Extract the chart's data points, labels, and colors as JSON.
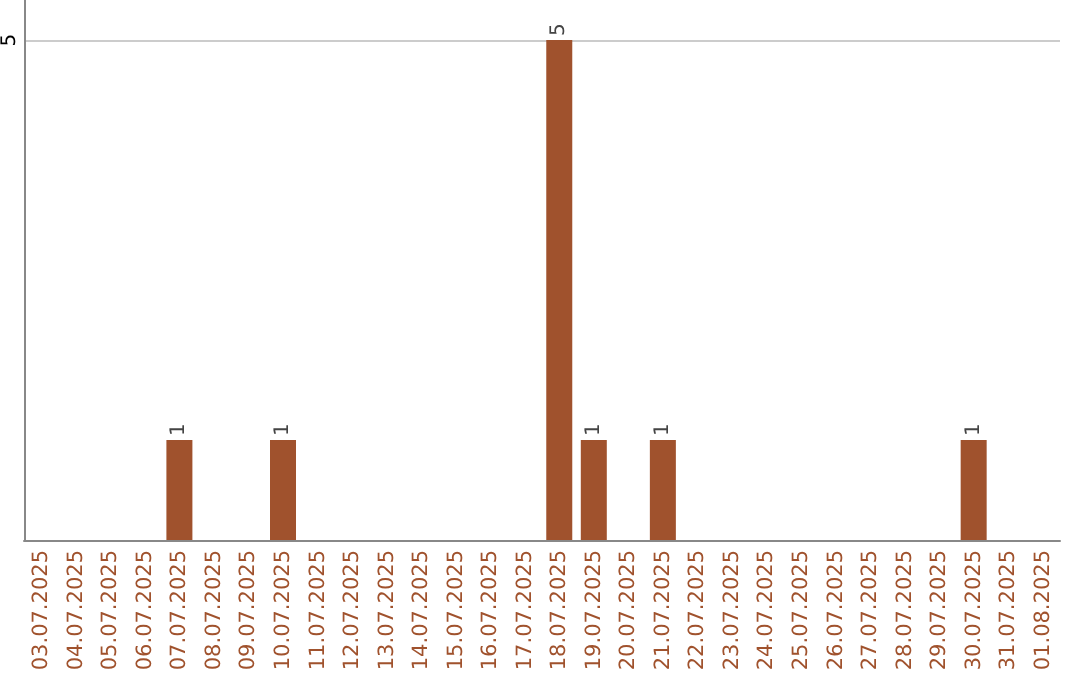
{
  "chart_data": {
    "type": "bar",
    "categories": [
      "03.07.2025",
      "04.07.2025",
      "05.07.2025",
      "06.07.2025",
      "07.07.2025",
      "08.07.2025",
      "09.07.2025",
      "10.07.2025",
      "11.07.2025",
      "12.07.2025",
      "13.07.2025",
      "14.07.2025",
      "15.07.2025",
      "16.07.2025",
      "17.07.2025",
      "18.07.2025",
      "19.07.2025",
      "20.07.2025",
      "21.07.2025",
      "22.07.2025",
      "23.07.2025",
      "24.07.2025",
      "25.07.2025",
      "26.07.2025",
      "27.07.2025",
      "28.07.2025",
      "29.07.2025",
      "30.07.2025",
      "31.07.2025",
      "01.08.2025"
    ],
    "values": [
      0,
      0,
      0,
      0,
      1,
      0,
      0,
      1,
      0,
      0,
      0,
      0,
      0,
      0,
      0,
      5,
      1,
      0,
      1,
      0,
      0,
      0,
      0,
      0,
      0,
      0,
      0,
      1,
      0,
      0
    ],
    "value_labels": [
      null,
      null,
      null,
      null,
      "1",
      null,
      null,
      "1",
      null,
      null,
      null,
      null,
      null,
      null,
      null,
      "5",
      "1",
      null,
      "1",
      null,
      null,
      null,
      null,
      null,
      null,
      null,
      null,
      "1",
      null,
      null
    ],
    "color": "#a0522d",
    "ylim": [
      0,
      5.4
    ],
    "yticks": [
      5
    ],
    "grid": "y"
  }
}
